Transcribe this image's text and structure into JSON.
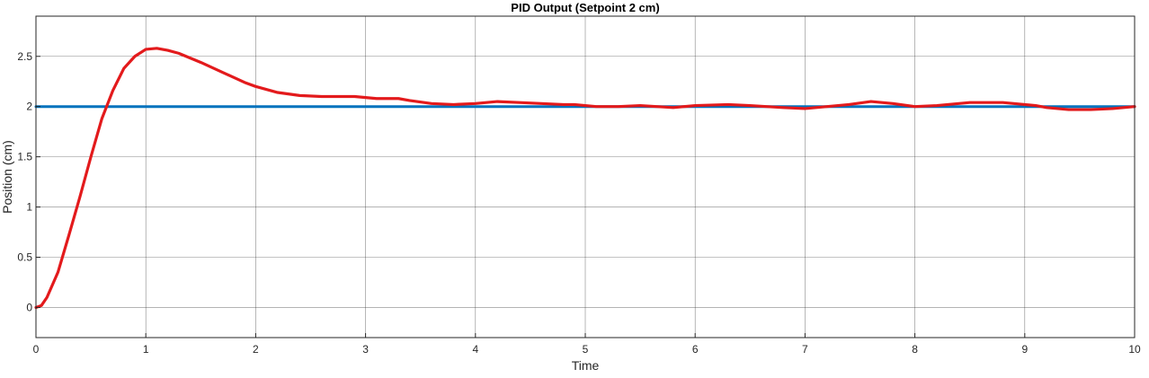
{
  "chart_data": {
    "type": "line",
    "title": "PID Output (Setpoint 2 cm)",
    "xlabel": "Time",
    "ylabel": "Position (cm)",
    "xlim": [
      0,
      10
    ],
    "ylim": [
      -0.3,
      2.9
    ],
    "xticks": [
      "0",
      "1",
      "2",
      "3",
      "4",
      "5",
      "6",
      "7",
      "8",
      "9",
      "10"
    ],
    "yticks": [
      "0",
      "0.5",
      "1",
      "1.5",
      "2",
      "2.5"
    ],
    "grid": true,
    "legend": "none",
    "series": [
      {
        "color": "#0072BD",
        "x": [
          0,
          10
        ],
        "y": [
          2.0,
          2.0
        ]
      },
      {
        "color": "#E31A1C",
        "x": [
          0,
          0.05,
          0.1,
          0.2,
          0.3,
          0.4,
          0.5,
          0.6,
          0.7,
          0.8,
          0.9,
          1.0,
          1.1,
          1.2,
          1.3,
          1.5,
          1.7,
          1.9,
          2.0,
          2.2,
          2.4,
          2.6,
          2.8,
          2.9,
          3.0,
          3.1,
          3.2,
          3.3,
          3.4,
          3.6,
          3.8,
          4.0,
          4.2,
          4.4,
          4.6,
          4.8,
          4.9,
          5.0,
          5.1,
          5.3,
          5.5,
          5.8,
          6.0,
          6.3,
          6.5,
          6.8,
          7.0,
          7.2,
          7.4,
          7.6,
          7.8,
          8.0,
          8.2,
          8.5,
          8.8,
          9.0,
          9.1,
          9.2,
          9.4,
          9.6,
          9.8,
          10.0
        ],
        "y": [
          0,
          0.02,
          0.1,
          0.35,
          0.72,
          1.1,
          1.5,
          1.88,
          2.16,
          2.38,
          2.5,
          2.57,
          2.58,
          2.56,
          2.53,
          2.44,
          2.34,
          2.24,
          2.2,
          2.14,
          2.11,
          2.1,
          2.1,
          2.1,
          2.09,
          2.08,
          2.08,
          2.08,
          2.06,
          2.03,
          2.02,
          2.03,
          2.05,
          2.04,
          2.03,
          2.02,
          2.02,
          2.01,
          2.0,
          2.0,
          2.01,
          1.99,
          2.01,
          2.02,
          2.01,
          1.99,
          1.98,
          2.0,
          2.02,
          2.05,
          2.03,
          2.0,
          2.01,
          2.04,
          2.04,
          2.02,
          2.01,
          1.99,
          1.97,
          1.97,
          1.98,
          2.0
        ]
      }
    ]
  }
}
